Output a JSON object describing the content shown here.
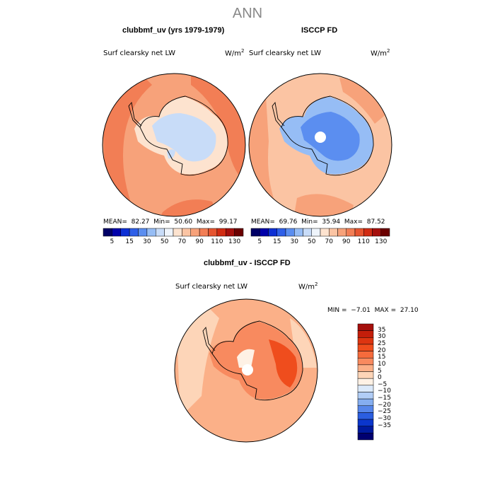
{
  "title": "ANN",
  "panels": [
    {
      "id": "model",
      "title": "clubbmf_uv (yrs 1979-1979)",
      "subtitle": "Surf clearsky net LW",
      "units_base": "W/m",
      "units_exp": "2",
      "mean_label": "MEAN=",
      "mean": "82.27",
      "min_label": "Min=",
      "min": "50.60",
      "max_label": "Max=",
      "max": "99.17"
    },
    {
      "id": "obs",
      "title": "ISCCP FD",
      "subtitle": "Surf clearsky net LW",
      "units_base": "W/m",
      "units_exp": "2",
      "mean_label": "MEAN=",
      "mean": "69.76",
      "min_label": "Min=",
      "min": "35.94",
      "max_label": "Max=",
      "max": "87.52"
    },
    {
      "id": "diff",
      "title": "clubbmf_uv - ISCCP FD",
      "subtitle": "Surf clearsky net LW",
      "units_base": "W/m",
      "units_exp": "2",
      "min_label": "MIN =",
      "min": "−7.01",
      "max_label": "MAX =",
      "max": "27.10"
    }
  ],
  "horizontal_colorbar": {
    "tick_labels": [
      "5",
      "15",
      "30",
      "50",
      "70",
      "90",
      "110",
      "130"
    ],
    "colors": [
      "#000066",
      "#0000aa",
      "#0d2fd4",
      "#2e5fe8",
      "#5b8ef0",
      "#96bdf5",
      "#c8dcf8",
      "#eef4fb",
      "#fde3cf",
      "#fbc4a3",
      "#f7a27a",
      "#f27e55",
      "#e65530",
      "#d12c13",
      "#a50f0c",
      "#6b0000"
    ]
  },
  "vertical_colorbar": {
    "tick_labels": [
      "35",
      "30",
      "25",
      "20",
      "15",
      "10",
      "5",
      "0",
      "−5",
      "−10",
      "−15",
      "−20",
      "−25",
      "−30",
      "−35"
    ],
    "colors": [
      "#a50f0c",
      "#c41e0a",
      "#dd3511",
      "#ef4d1d",
      "#f56b3c",
      "#f88a5f",
      "#fbb088",
      "#fdd5b8",
      "#fef1e5",
      "#dbe9fa",
      "#b1cdf6",
      "#85aef0",
      "#5686ea",
      "#2b5ee0",
      "#0b36cc",
      "#001a9e",
      "#000070"
    ]
  },
  "chart_data": [
    {
      "type": "heatmap",
      "title": "clubbmf_uv (yrs 1979-1979)",
      "variable": "Surf clearsky net LW",
      "units": "W/m^2",
      "projection": "south polar stereographic",
      "stats": {
        "mean": 82.27,
        "min": 50.6,
        "max": 99.17
      },
      "contour_levels": [
        5,
        15,
        30,
        50,
        70,
        90,
        110,
        130
      ]
    },
    {
      "type": "heatmap",
      "title": "ISCCP FD",
      "variable": "Surf clearsky net LW",
      "units": "W/m^2",
      "projection": "south polar stereographic",
      "stats": {
        "mean": 69.76,
        "min": 35.94,
        "max": 87.52
      },
      "contour_levels": [
        5,
        15,
        30,
        50,
        70,
        90,
        110,
        130
      ]
    },
    {
      "type": "heatmap",
      "title": "clubbmf_uv - ISCCP FD",
      "variable": "Surf clearsky net LW",
      "units": "W/m^2",
      "projection": "south polar stereographic",
      "stats": {
        "min": -7.01,
        "max": 27.1
      },
      "contour_levels": [
        -35,
        -30,
        -25,
        -20,
        -15,
        -10,
        -5,
        0,
        5,
        10,
        15,
        20,
        25,
        30,
        35
      ]
    }
  ]
}
